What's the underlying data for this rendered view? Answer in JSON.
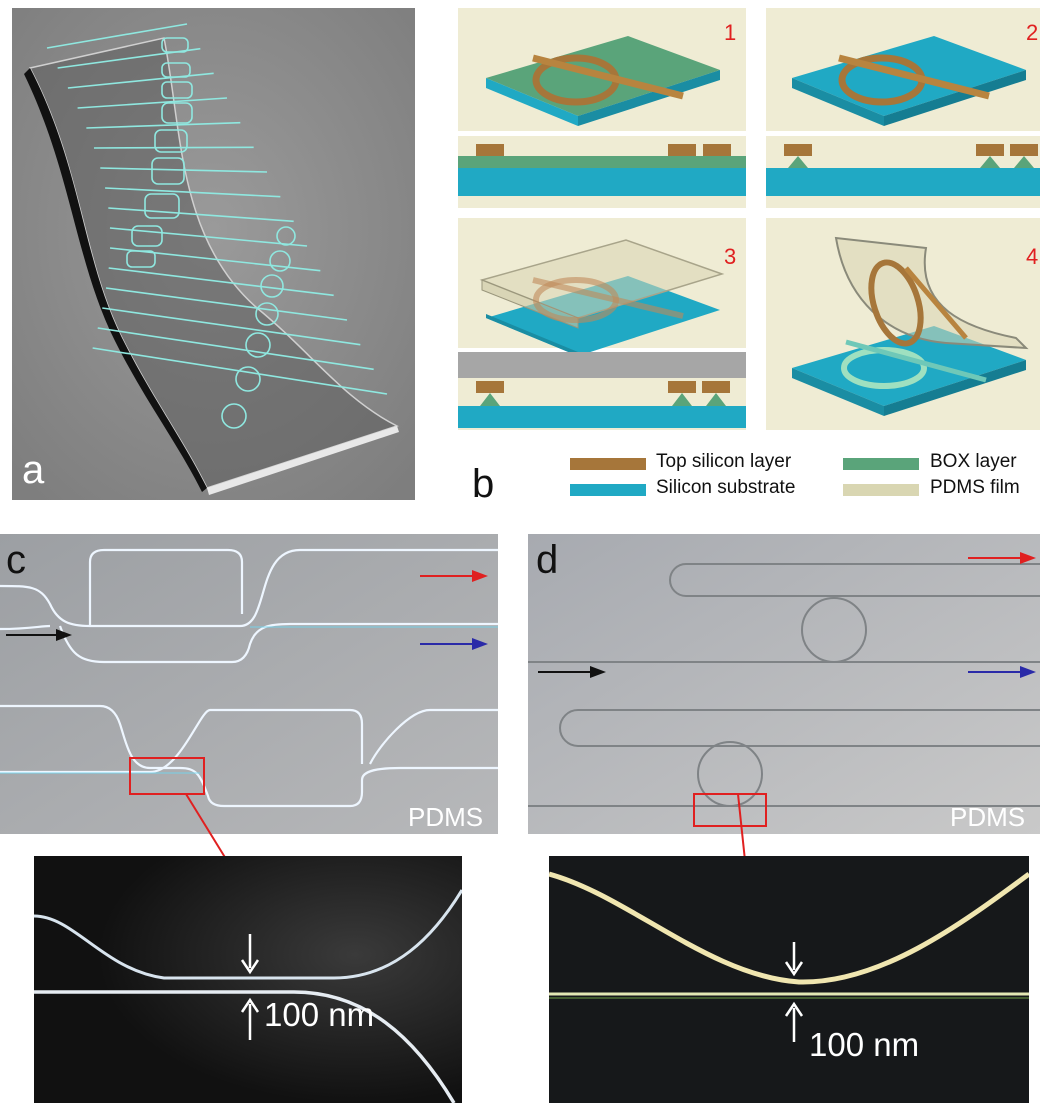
{
  "panels": {
    "a": {
      "letter": "a"
    },
    "b": {
      "letter": "b",
      "steps": [
        "1",
        "2",
        "3",
        "4"
      ]
    },
    "c": {
      "letter": "c",
      "material": "PDMS",
      "gap_label": "100 nm"
    },
    "d": {
      "letter": "d",
      "material": "PDMS",
      "gap_label": "100 nm"
    }
  },
  "legend": {
    "items": [
      {
        "label": "Top silicon layer",
        "color": "#a6763a"
      },
      {
        "label": "BOX layer",
        "color": "#5aa47a"
      },
      {
        "label": "Silicon substrate",
        "color": "#20a9c4"
      },
      {
        "label": "PDMS film",
        "color": "#d9d6b2"
      }
    ]
  },
  "colors": {
    "render_background": "#8e8e8e",
    "step_background": "#efecd4",
    "waveguide": "#8fe8e0",
    "arrow_red": "#e02020",
    "arrow_blue": "#2a2aa8",
    "arrow_black": "#111111",
    "highlight_box": "#e02020"
  }
}
